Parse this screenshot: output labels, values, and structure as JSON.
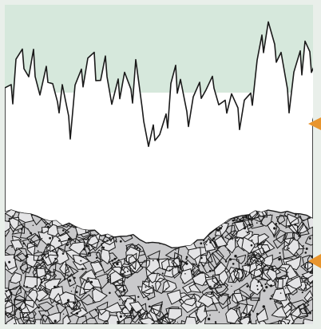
{
  "diagram": {
    "colors": {
      "frame": "#e9efea",
      "top_band": "#d6e8dc",
      "white": "#ffffff",
      "outline": "#1a1a1a",
      "rock_fill": "#c9c9cb",
      "arrow": "#e8952d"
    },
    "layers": [
      {
        "name": "spiky-upper-layer",
        "labels": []
      },
      {
        "name": "rough-bedrock-layer",
        "labels": []
      }
    ],
    "markers": [
      {
        "name": "upper-arrow-marker",
        "icon": "triangle-left-icon"
      },
      {
        "name": "lower-arrow-marker",
        "icon": "triangle-left-icon"
      }
    ]
  }
}
